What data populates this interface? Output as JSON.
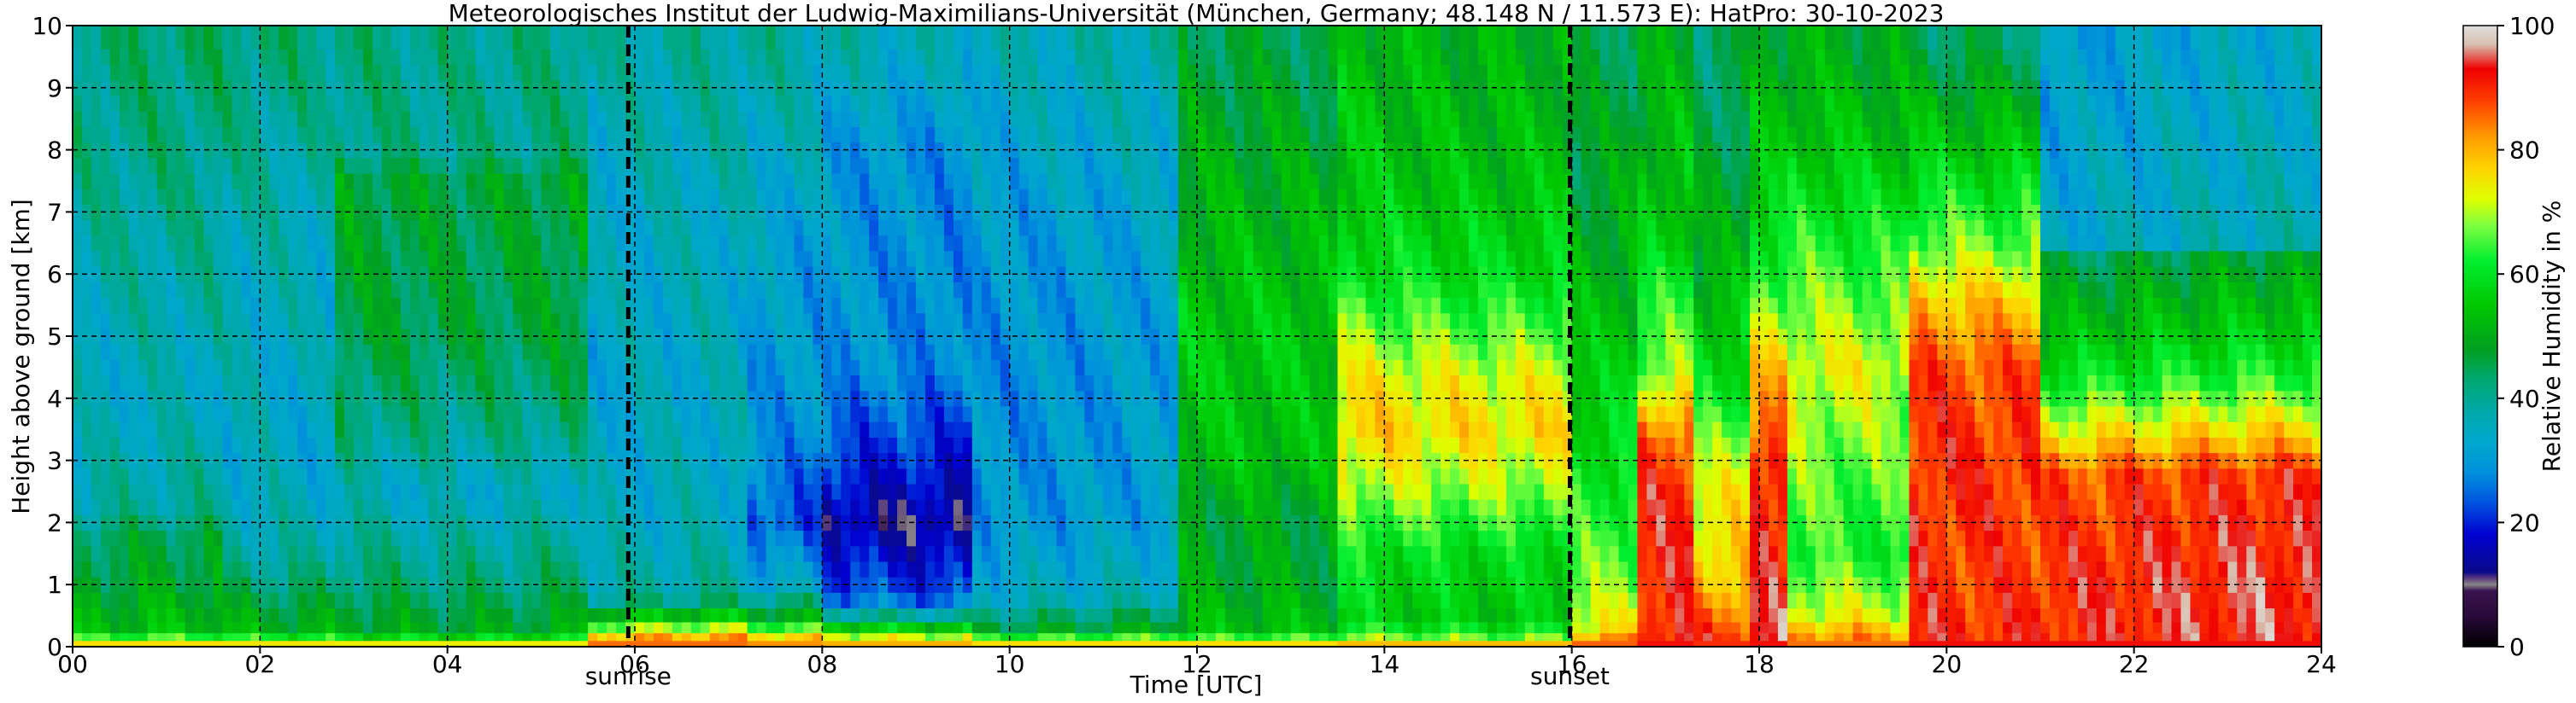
{
  "chart_data": {
    "type": "heatmap",
    "title": "Meteorologisches Institut der Ludwig-Maximilians-Universität (München, Germany; 48.148 N / 11.573 E):    HatPro: 30-10-2023",
    "xlabel": "Time [UTC]",
    "ylabel": "Height above ground [km]",
    "xlim": [
      0,
      24
    ],
    "ylim": [
      0,
      10
    ],
    "x_ticks": [
      0,
      2,
      4,
      6,
      8,
      10,
      12,
      14,
      16,
      18,
      20,
      22,
      24
    ],
    "x_tick_labels": [
      "00",
      "02",
      "04",
      "06",
      "08",
      "10",
      "12",
      "14",
      "16",
      "18",
      "20",
      "22",
      "24"
    ],
    "y_ticks": [
      0,
      1,
      2,
      3,
      4,
      5,
      6,
      7,
      8,
      9,
      10
    ],
    "y_tick_labels": [
      "0",
      "1",
      "2",
      "3",
      "4",
      "5",
      "6",
      "7",
      "8",
      "9",
      "10"
    ],
    "grid": true,
    "annotations": [
      {
        "label": "sunrise",
        "x": 5.93
      },
      {
        "label": "sunset",
        "x": 15.98
      }
    ],
    "colorbar": {
      "label": "Relative Humidity in %",
      "range": [
        0,
        100
      ],
      "ticks": [
        0,
        20,
        40,
        60,
        80,
        100
      ],
      "tick_labels": [
        "0",
        "20",
        "40",
        "60",
        "80",
        "100"
      ]
    },
    "colorscale": [
      [
        0,
        "#000000"
      ],
      [
        5,
        "#2a0a3a"
      ],
      [
        9,
        "#3a1450"
      ],
      [
        10,
        "#888888"
      ],
      [
        11,
        "#5a3a7a"
      ],
      [
        12,
        "#0a0a8a"
      ],
      [
        18,
        "#0000d0"
      ],
      [
        23,
        "#0050e0"
      ],
      [
        28,
        "#0090dc"
      ],
      [
        33,
        "#00a8cc"
      ],
      [
        38,
        "#00a8a8"
      ],
      [
        43,
        "#00a870"
      ],
      [
        48,
        "#00a020"
      ],
      [
        55,
        "#00c800"
      ],
      [
        62,
        "#00ee30"
      ],
      [
        68,
        "#80ff40"
      ],
      [
        72,
        "#ddff00"
      ],
      [
        77,
        "#ffd400"
      ],
      [
        82,
        "#ff9c00"
      ],
      [
        88,
        "#ff3c00"
      ],
      [
        93,
        "#ee0000"
      ],
      [
        97,
        "#d8c0b0"
      ],
      [
        100,
        "#e0e0e0"
      ]
    ],
    "time_resolution_h": 0.1,
    "height_levels_km": [
      0.05,
      0.15,
      0.3,
      0.5,
      0.75,
      1.0,
      1.25,
      1.5,
      1.75,
      2.0,
      2.25,
      2.5,
      2.75,
      3.0,
      3.25,
      3.5,
      3.75,
      4.0,
      4.25,
      4.5,
      4.75,
      5.0,
      5.25,
      5.5,
      5.75,
      6.0,
      6.25,
      6.5,
      6.75,
      7.0,
      7.25,
      7.5,
      7.75,
      8.0,
      8.25,
      8.5,
      8.75,
      9.0,
      9.25,
      9.5,
      9.75
    ],
    "segments": [
      {
        "t": [
          0.0,
          1.6
        ],
        "profile": [
          [
            0,
            86
          ],
          [
            0.1,
            66
          ],
          [
            0.3,
            52
          ],
          [
            1.0,
            47
          ],
          [
            1.8,
            44
          ],
          [
            2.2,
            38
          ],
          [
            4.0,
            34
          ],
          [
            6.0,
            37
          ],
          [
            8.0,
            40
          ],
          [
            10,
            42
          ]
        ]
      },
      {
        "t": [
          1.6,
          2.8
        ],
        "profile": [
          [
            0,
            86
          ],
          [
            0.1,
            64
          ],
          [
            0.3,
            50
          ],
          [
            1.0,
            42
          ],
          [
            1.6,
            37
          ],
          [
            3.0,
            33
          ],
          [
            6.0,
            35
          ],
          [
            8.0,
            38
          ],
          [
            10,
            42
          ]
        ]
      },
      {
        "t": [
          2.8,
          5.5
        ],
        "profile": [
          [
            0,
            86
          ],
          [
            0.1,
            62
          ],
          [
            0.3,
            50
          ],
          [
            1.0,
            44
          ],
          [
            1.7,
            40
          ],
          [
            2.5,
            36
          ],
          [
            3.5,
            42
          ],
          [
            5.0,
            47
          ],
          [
            7.5,
            48
          ],
          [
            8.0,
            42
          ],
          [
            10,
            42
          ]
        ]
      },
      {
        "t": [
          5.5,
          7.2
        ],
        "profile": [
          [
            0,
            88
          ],
          [
            0.2,
            76
          ],
          [
            0.45,
            55
          ],
          [
            0.8,
            38
          ],
          [
            2.0,
            34
          ],
          [
            4.0,
            33
          ],
          [
            7.0,
            34
          ],
          [
            10,
            38
          ]
        ]
      },
      {
        "t": [
          7.2,
          8.0
        ],
        "profile": [
          [
            0,
            86
          ],
          [
            0.2,
            72
          ],
          [
            0.45,
            50
          ],
          [
            1.0,
            32
          ],
          [
            2.0,
            22
          ],
          [
            3.5,
            28
          ],
          [
            6.0,
            30
          ],
          [
            10,
            38
          ]
        ]
      },
      {
        "t": [
          8.0,
          9.6
        ],
        "profile": [
          [
            0,
            84
          ],
          [
            0.2,
            68
          ],
          [
            0.4,
            45
          ],
          [
            0.8,
            24
          ],
          [
            2.0,
            14
          ],
          [
            3.2,
            22
          ],
          [
            4.5,
            29
          ],
          [
            8.0,
            30
          ],
          [
            10,
            38
          ]
        ]
      },
      {
        "t": [
          9.6,
          11.8
        ],
        "profile": [
          [
            0,
            82
          ],
          [
            0.15,
            64
          ],
          [
            0.3,
            48
          ],
          [
            0.8,
            36
          ],
          [
            2.0,
            31
          ],
          [
            4.0,
            30
          ],
          [
            7.0,
            32
          ],
          [
            10,
            38
          ]
        ]
      },
      {
        "t": [
          11.8,
          13.5
        ],
        "profile": [
          [
            0,
            86
          ],
          [
            0.1,
            66
          ],
          [
            0.3,
            52
          ],
          [
            1.0,
            48
          ],
          [
            2.0,
            47
          ],
          [
            3.0,
            52
          ],
          [
            5.0,
            54
          ],
          [
            7.0,
            50
          ],
          [
            10,
            44
          ]
        ]
      },
      {
        "t": [
          13.5,
          16.0
        ],
        "profile": [
          [
            0,
            88
          ],
          [
            0.1,
            70
          ],
          [
            0.4,
            56
          ],
          [
            1.5,
            60
          ],
          [
            2.5,
            70
          ],
          [
            3.5,
            77
          ],
          [
            4.3,
            74
          ],
          [
            5.0,
            68
          ],
          [
            6.0,
            60
          ],
          [
            7.5,
            55
          ],
          [
            10,
            52
          ]
        ]
      },
      {
        "t": [
          16.0,
          16.7
        ],
        "profile": [
          [
            0,
            88
          ],
          [
            0.3,
            74
          ],
          [
            1.0,
            68
          ],
          [
            2.5,
            62
          ],
          [
            4.0,
            57
          ],
          [
            6.0,
            52
          ],
          [
            8.0,
            48
          ],
          [
            10,
            46
          ]
        ]
      },
      {
        "t": [
          16.7,
          17.3
        ],
        "profile": [
          [
            0,
            92
          ],
          [
            0.8,
            90
          ],
          [
            2.5,
            90
          ],
          [
            3.3,
            86
          ],
          [
            4.5,
            68
          ],
          [
            6.5,
            56
          ],
          [
            10,
            48
          ]
        ]
      },
      {
        "t": [
          17.3,
          17.85
        ],
        "profile": [
          [
            0,
            90
          ],
          [
            1.0,
            78
          ],
          [
            2.5,
            72
          ],
          [
            4.0,
            60
          ],
          [
            6.5,
            48
          ],
          [
            10,
            42
          ]
        ]
      },
      {
        "t": [
          17.85,
          18.3
        ],
        "profile": [
          [
            0,
            92
          ],
          [
            0.8,
            90
          ],
          [
            3.0,
            90
          ],
          [
            4.0,
            80
          ],
          [
            6.0,
            62
          ],
          [
            8.0,
            52
          ],
          [
            10,
            48
          ]
        ]
      },
      {
        "t": [
          18.3,
          19.6
        ],
        "profile": [
          [
            0,
            86
          ],
          [
            0.5,
            72
          ],
          [
            1.5,
            62
          ],
          [
            3.0,
            66
          ],
          [
            4.5,
            72
          ],
          [
            6.0,
            64
          ],
          [
            8.0,
            54
          ],
          [
            10,
            48
          ]
        ]
      },
      {
        "t": [
          19.6,
          21.0
        ],
        "profile": [
          [
            0,
            92
          ],
          [
            1.0,
            90
          ],
          [
            3.0,
            91
          ],
          [
            4.5,
            88
          ],
          [
            5.5,
            80
          ],
          [
            6.5,
            68
          ],
          [
            8.0,
            56
          ],
          [
            10,
            44
          ]
        ]
      },
      {
        "t": [
          21.0,
          24.0
        ],
        "profile": [
          [
            0,
            92
          ],
          [
            1.0,
            92
          ],
          [
            2.8,
            88
          ],
          [
            3.2,
            80
          ],
          [
            3.8,
            70
          ],
          [
            4.3,
            62
          ],
          [
            5.0,
            55
          ],
          [
            6.0,
            48
          ],
          [
            6.4,
            45
          ],
          [
            6.5,
            35
          ],
          [
            10,
            32
          ]
        ]
      }
    ]
  }
}
